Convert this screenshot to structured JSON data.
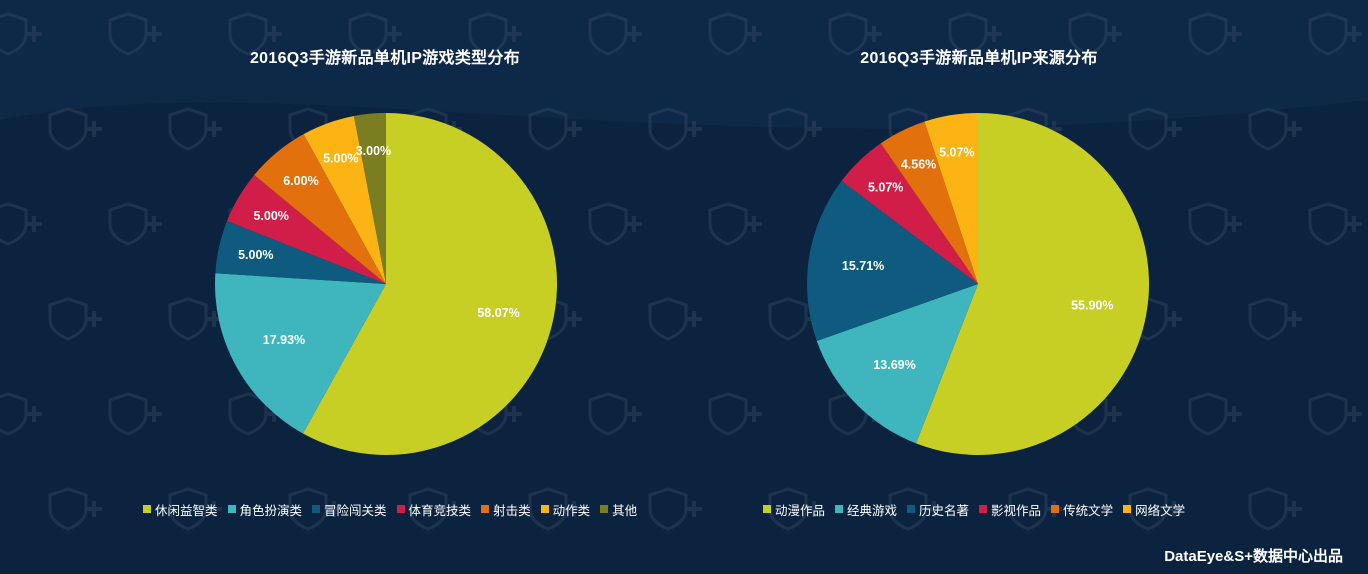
{
  "footer": {
    "credit": "DataEye&S+数据中心出品"
  },
  "chart_data": [
    {
      "type": "pie",
      "title": "2016Q3手游新品单机IP游戏类型分布",
      "categories": [
        "休闲益智类",
        "角色扮演类",
        "冒险闯关类",
        "体育竞技类",
        "射击类",
        "动作类",
        "其他"
      ],
      "values": [
        58.07,
        17.93,
        5.0,
        5.0,
        6.0,
        5.0,
        3.0
      ],
      "labels": [
        "58.07%",
        "17.93%",
        "5.00%",
        "5.00%",
        "6.00%",
        "5.00%",
        "3.00%"
      ],
      "colors": [
        "#c8cf24",
        "#3fb6bd",
        "#0f5a7f",
        "#d11e48",
        "#e2700d",
        "#fbb414",
        "#7a7d20"
      ],
      "legend": "bottom"
    },
    {
      "type": "pie",
      "title": "2016Q3手游新品单机IP来源分布",
      "categories": [
        "动漫作品",
        "经典游戏",
        "历史名著",
        "影视作品",
        "传统文学",
        "网络文学"
      ],
      "values": [
        55.9,
        13.69,
        15.71,
        5.07,
        4.56,
        5.07
      ],
      "labels": [
        "55.90%",
        "13.69%",
        "15.71%",
        "5.07%",
        "4.56%",
        "5.07%"
      ],
      "colors": [
        "#c8cf24",
        "#3fb6bd",
        "#0f5a7f",
        "#d11e48",
        "#e2700d",
        "#fbb414"
      ],
      "legend": "bottom"
    }
  ]
}
